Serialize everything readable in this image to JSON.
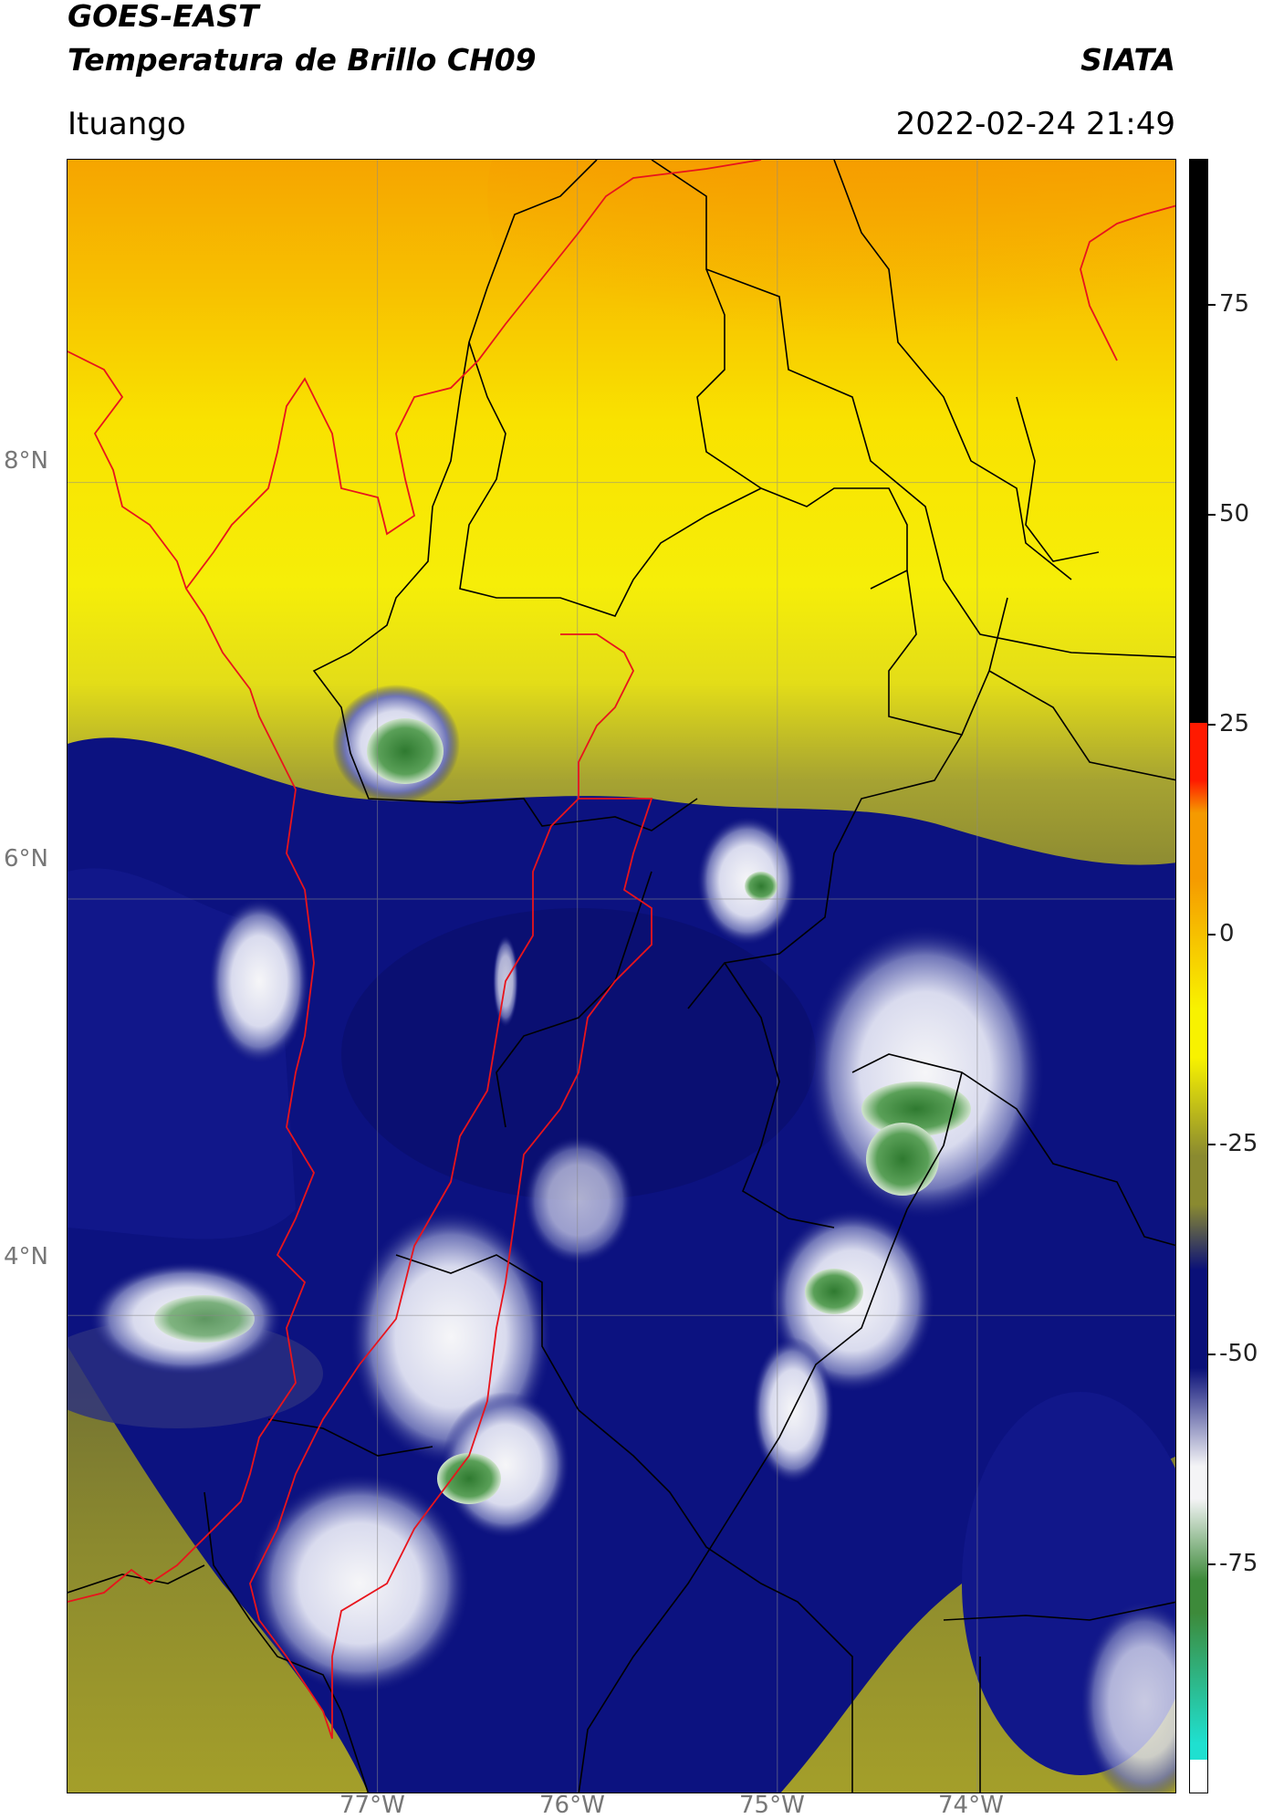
{
  "header": {
    "satellite": "GOES-EAST",
    "product": "Temperatura de Brillo CH09",
    "brand": "SIATA",
    "region": "Ituango",
    "timestamp": "2022-02-24 21:49"
  },
  "map": {
    "extent": {
      "lon_min": -78.55,
      "lon_max": -73.0,
      "lat_min": 1.7,
      "lat_max": 9.55
    },
    "lat_labels": [
      "8°N",
      "6°N",
      "4°N"
    ],
    "lon_labels": [
      "77°W",
      "76°W",
      "75°W",
      "74°W"
    ],
    "gridlines": true,
    "background_color": "#ecd21a",
    "colors": {
      "coast": "#e8141c",
      "borders": "#000000",
      "cloud_cold": "#0a1078",
      "cloud_white": "#f4f4f6",
      "cloud_green": "#3d8a3a",
      "warm_orange": "#f5a300",
      "warm_yellow": "#f8f200",
      "olive": "#7e7e2a"
    }
  },
  "colorbar": {
    "ticks": [
      "75",
      "50",
      "25",
      "0",
      "-25",
      "-50",
      "-75"
    ],
    "range": [
      -90,
      90
    ],
    "colors": {
      "black": "#000000",
      "red": "#ff1a00",
      "orange": "#f59a00",
      "yellow": "#f8f200",
      "olive": "#8a8a30",
      "navy": "#0a1078",
      "white": "#f4f4f6",
      "green": "#3d8a3a",
      "cyan": "#1fe0d0"
    }
  }
}
